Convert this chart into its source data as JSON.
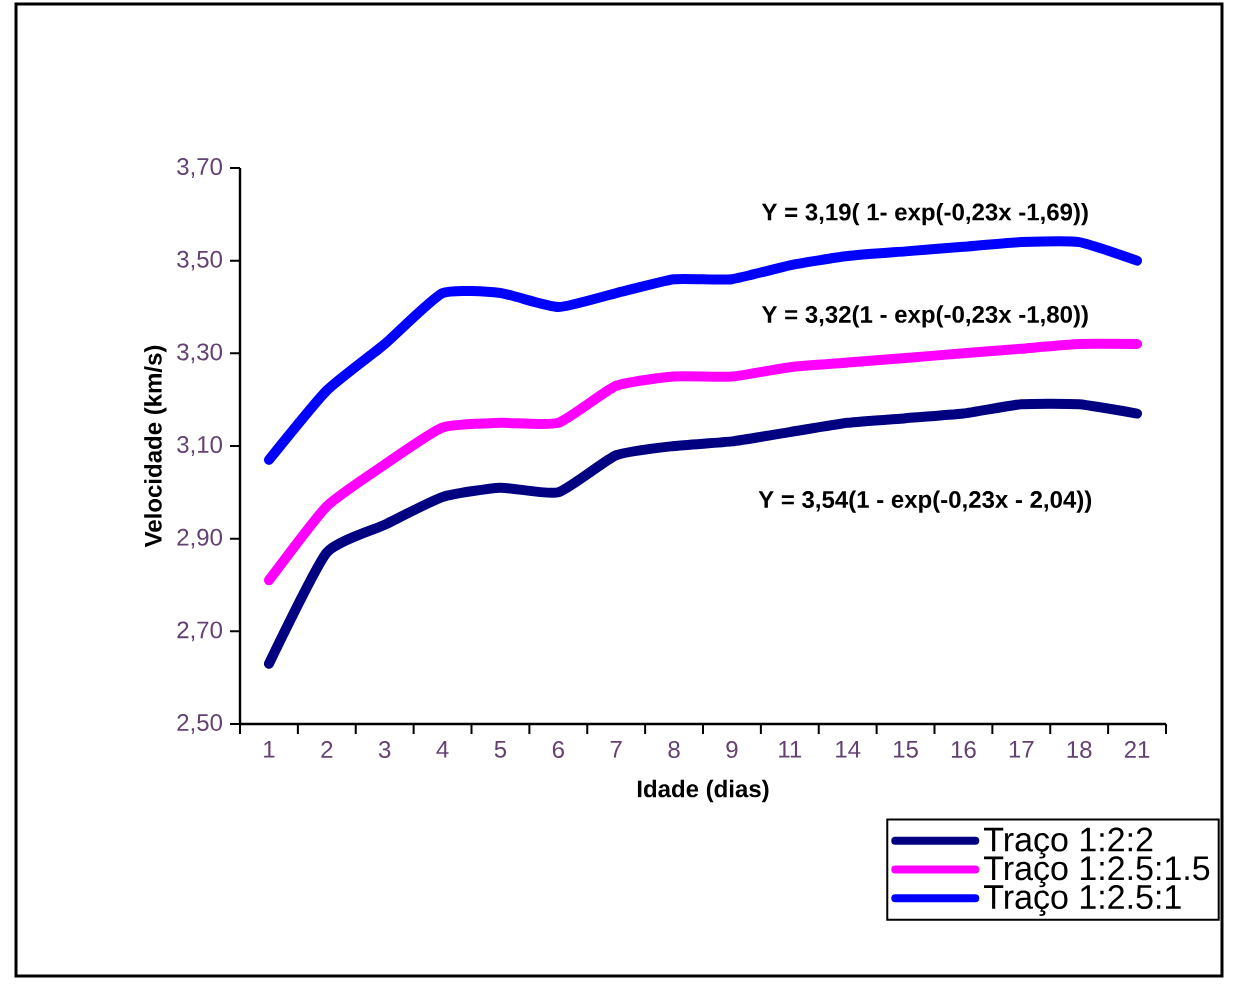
{
  "chart_data": {
    "type": "line",
    "xlabel": "Idade (dias)",
    "ylabel": "Velocidade (km/s)",
    "categories": [
      "1",
      "2",
      "3",
      "4",
      "5",
      "6",
      "7",
      "8",
      "9",
      "11",
      "14",
      "15",
      "16",
      "17",
      "18",
      "21"
    ],
    "series": [
      {
        "name": "Traço 1:2:2",
        "color": "#000080",
        "values": [
          2.63,
          2.87,
          2.93,
          2.99,
          3.01,
          3.0,
          3.08,
          3.1,
          3.11,
          3.13,
          3.15,
          3.16,
          3.17,
          3.19,
          3.19,
          3.17
        ]
      },
      {
        "name": "Traço 1:2.5:1.5",
        "color": "#ff00ff",
        "values": [
          2.81,
          2.97,
          3.06,
          3.14,
          3.15,
          3.15,
          3.23,
          3.25,
          3.25,
          3.27,
          3.28,
          3.29,
          3.3,
          3.31,
          3.32,
          3.32
        ]
      },
      {
        "name": "Traço 1:2.5:1",
        "color": "#0000ff",
        "values": [
          3.07,
          3.22,
          3.32,
          3.43,
          3.43,
          3.4,
          3.43,
          3.46,
          3.46,
          3.49,
          3.51,
          3.52,
          3.53,
          3.54,
          3.54,
          3.5
        ]
      }
    ],
    "ylim": [
      2.5,
      3.7
    ],
    "yticks": [
      {
        "value": 2.5,
        "label": "2,50"
      },
      {
        "value": 2.7,
        "label": "2,70"
      },
      {
        "value": 2.9,
        "label": "2,90"
      },
      {
        "value": 3.1,
        "label": "3,10"
      },
      {
        "value": 3.3,
        "label": "3,30"
      },
      {
        "value": 3.5,
        "label": "3,50"
      },
      {
        "value": 3.7,
        "label": "3,70"
      }
    ],
    "annotations": [
      "Y = 3,19( 1- exp(-0,23x -1,69))",
      "Y = 3,32(1 - exp(-0,23x -1,80))",
      "Y = 3,54(1 - exp(-0,23x - 2,04))"
    ],
    "legend": "bottom right",
    "line_style": "solid"
  }
}
